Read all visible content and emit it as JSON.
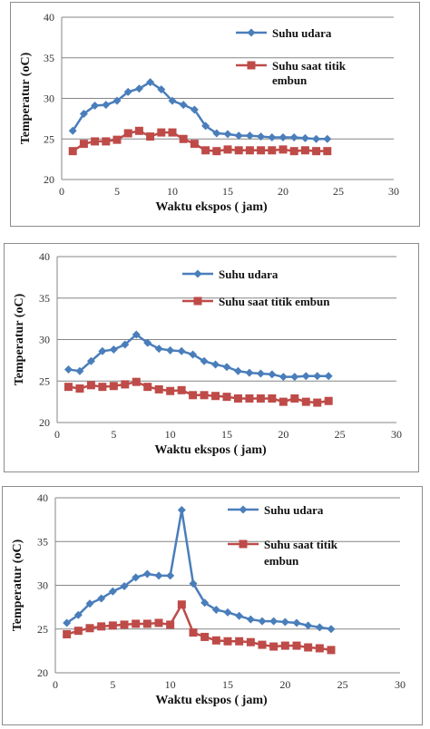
{
  "colors": {
    "udara": "#4a7ebb",
    "embun": "#be4b48",
    "axis": "#868686",
    "grid": "#868686"
  },
  "chart_data": [
    {
      "type": "line",
      "xlabel": "Waktu ekspos ( jam)",
      "ylabel": "Temperatur (oC)",
      "xlim": [
        0,
        30
      ],
      "ylim": [
        20,
        40
      ],
      "xticks": [
        0,
        5,
        10,
        15,
        20,
        25,
        30
      ],
      "yticks": [
        20,
        25,
        30,
        35,
        40
      ],
      "grid": true,
      "legend_position": "top-right",
      "legend_lines": [
        [
          "Suhu udara"
        ],
        [
          "Suhu saat titik",
          "embun"
        ]
      ],
      "series": [
        {
          "name": "Suhu udara",
          "marker": "diamond",
          "x": [
            1,
            2,
            3,
            4,
            5,
            6,
            7,
            8,
            9,
            10,
            11,
            12,
            13,
            14,
            15,
            16,
            17,
            18,
            19,
            20,
            21,
            22,
            23,
            24
          ],
          "y": [
            26,
            28.1,
            29.1,
            29.2,
            29.7,
            30.8,
            31.2,
            32,
            31.1,
            29.7,
            29.2,
            28.6,
            26.6,
            25.7,
            25.6,
            25.4,
            25.4,
            25.3,
            25.2,
            25.2,
            25.2,
            25.1,
            25,
            25
          ]
        },
        {
          "name": "Suhu saat titik embun",
          "marker": "square",
          "x": [
            1,
            2,
            3,
            4,
            5,
            6,
            7,
            8,
            9,
            10,
            11,
            12,
            13,
            14,
            15,
            16,
            17,
            18,
            19,
            20,
            21,
            22,
            23,
            24
          ],
          "y": [
            23.5,
            24.4,
            24.7,
            24.7,
            24.9,
            25.7,
            26,
            25.3,
            25.8,
            25.8,
            25,
            24.4,
            23.6,
            23.5,
            23.7,
            23.6,
            23.6,
            23.6,
            23.6,
            23.7,
            23.5,
            23.6,
            23.5,
            23.5
          ]
        }
      ]
    },
    {
      "type": "line",
      "xlabel": "Waktu ekspos ( jam)",
      "ylabel": "Temperatur (oC)",
      "xlim": [
        0,
        30
      ],
      "ylim": [
        20,
        40
      ],
      "xticks": [
        0,
        5,
        10,
        15,
        20,
        25,
        30
      ],
      "yticks": [
        20,
        25,
        30,
        35,
        40
      ],
      "grid": true,
      "legend_position": "top-right",
      "legend_lines": [
        [
          "Suhu udara"
        ],
        [
          "Suhu saat titik embun"
        ]
      ],
      "series": [
        {
          "name": "Suhu udara",
          "marker": "diamond",
          "x": [
            1,
            2,
            3,
            4,
            5,
            6,
            7,
            8,
            9,
            10,
            11,
            12,
            13,
            14,
            15,
            16,
            17,
            18,
            19,
            20,
            21,
            22,
            23,
            24
          ],
          "y": [
            26.4,
            26.2,
            27.4,
            28.6,
            28.8,
            29.4,
            30.6,
            29.6,
            28.9,
            28.7,
            28.6,
            28.2,
            27.4,
            27,
            26.7,
            26.2,
            26,
            25.9,
            25.8,
            25.5,
            25.5,
            25.6,
            25.6,
            25.6
          ]
        },
        {
          "name": "Suhu saat titik embun",
          "marker": "square",
          "x": [
            1,
            2,
            3,
            4,
            5,
            6,
            7,
            8,
            9,
            10,
            11,
            12,
            13,
            14,
            15,
            16,
            17,
            18,
            19,
            20,
            21,
            22,
            23,
            24
          ],
          "y": [
            24.3,
            24.1,
            24.5,
            24.3,
            24.4,
            24.6,
            24.9,
            24.3,
            24,
            23.8,
            23.9,
            23.3,
            23.3,
            23.2,
            23.1,
            22.9,
            22.9,
            22.9,
            22.9,
            22.5,
            22.9,
            22.5,
            22.4,
            22.6
          ]
        }
      ]
    },
    {
      "type": "line",
      "xlabel": "Waktu ekspos ( jam)",
      "ylabel": "Temperatur (oC)",
      "xlim": [
        0,
        30
      ],
      "ylim": [
        20,
        40
      ],
      "xticks": [
        0,
        5,
        10,
        15,
        20,
        25,
        30
      ],
      "yticks": [
        20,
        25,
        30,
        35,
        40
      ],
      "grid": true,
      "legend_position": "top-right",
      "legend_lines": [
        [
          "Suhu udara"
        ],
        [
          "Suhu saat titik",
          "embun"
        ]
      ],
      "series": [
        {
          "name": "Suhu udara",
          "marker": "diamond",
          "x": [
            1,
            2,
            3,
            4,
            5,
            6,
            7,
            8,
            9,
            10,
            11,
            12,
            13,
            14,
            15,
            16,
            17,
            18,
            19,
            20,
            21,
            22,
            23,
            24
          ],
          "y": [
            25.7,
            26.6,
            27.9,
            28.5,
            29.3,
            29.9,
            30.9,
            31.3,
            31.1,
            31.1,
            38.6,
            30.2,
            28,
            27.2,
            26.9,
            26.5,
            26.1,
            25.9,
            25.9,
            25.8,
            25.7,
            25.4,
            25.2,
            25
          ]
        },
        {
          "name": "Suhu saat titik embun",
          "marker": "square",
          "x": [
            1,
            2,
            3,
            4,
            5,
            6,
            7,
            8,
            9,
            10,
            11,
            12,
            13,
            14,
            15,
            16,
            17,
            18,
            19,
            20,
            21,
            22,
            23,
            24
          ],
          "y": [
            24.4,
            24.8,
            25.1,
            25.3,
            25.4,
            25.5,
            25.6,
            25.6,
            25.7,
            25.5,
            27.8,
            24.6,
            24.1,
            23.7,
            23.6,
            23.6,
            23.5,
            23.2,
            23,
            23.1,
            23.1,
            22.9,
            22.8,
            22.6
          ]
        }
      ]
    }
  ]
}
